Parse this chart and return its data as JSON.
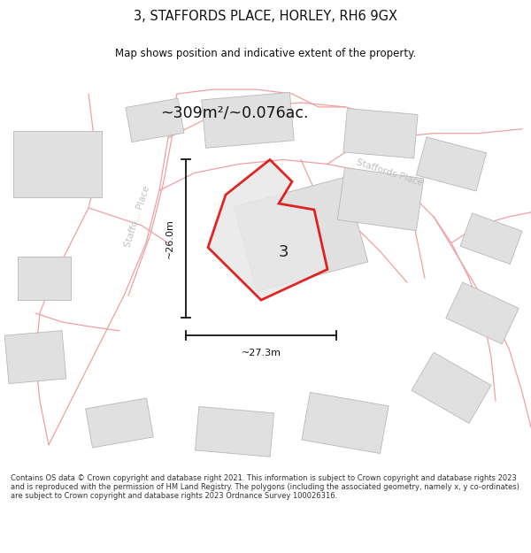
{
  "title": "3, STAFFORDS PLACE, HORLEY, RH6 9GX",
  "subtitle": "Map shows position and indicative extent of the property.",
  "area_text": "~309m²/~0.076ac.",
  "dim_h": "~26.0m",
  "dim_w": "~27.3m",
  "plot_number": "3",
  "footer": "Contains OS data © Crown copyright and database right 2021. This information is subject to Crown copyright and database rights 2023 and is reproduced with the permission of HM Land Registry. The polygons (including the associated geometry, namely x, y co-ordinates) are subject to Crown copyright and database rights 2023 Ordnance Survey 100026316.",
  "bg_color": "#ffffff",
  "road_color": "#f0a0a0",
  "road_edge_color": "#c8c8c8",
  "building_color": "#e0e0e0",
  "building_edge": "#b8b8b8",
  "plot_fill": "#e8e8e8",
  "plot_edge_color": "#dd0000",
  "road_label_color": "#c0c0c0",
  "title_color": "#111111",
  "dim_color": "#111111",
  "map_xlim": [
    0,
    600
  ],
  "map_ylim": [
    0,
    450
  ]
}
